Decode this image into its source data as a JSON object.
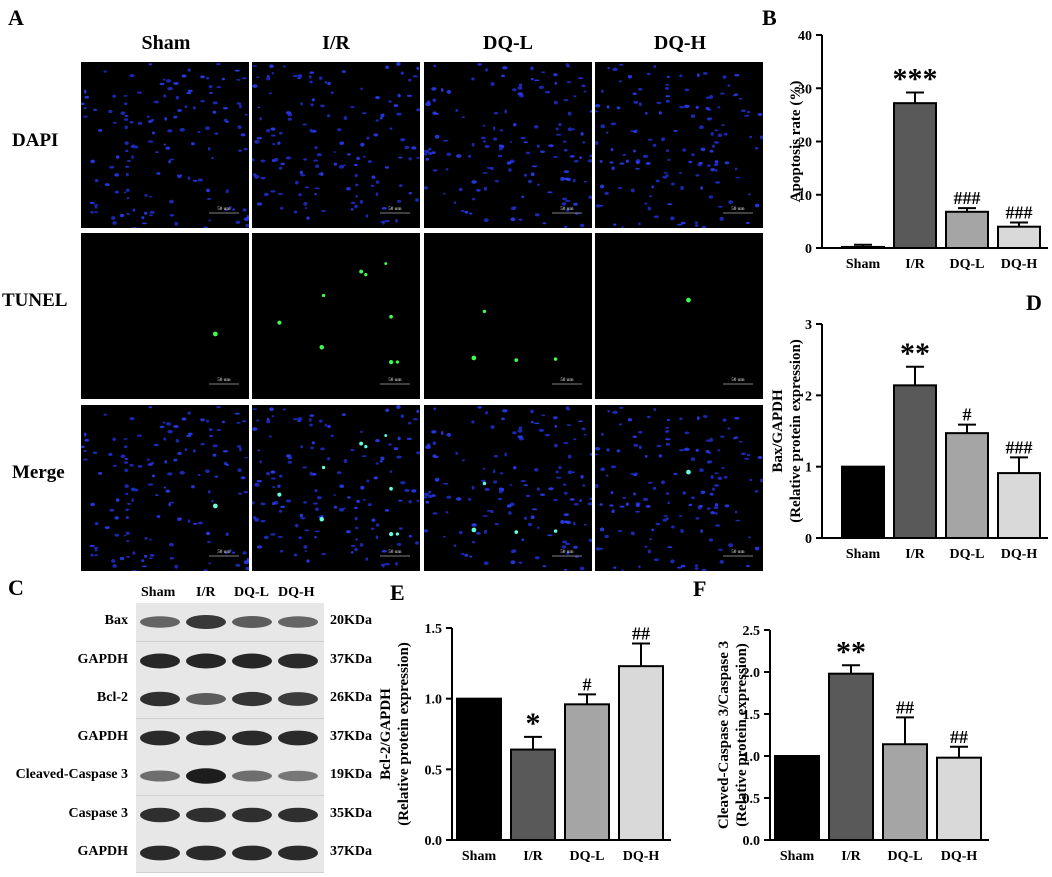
{
  "panels": {
    "A": "A",
    "B": "B",
    "C": "C",
    "D": "D",
    "E": "E",
    "F": "F"
  },
  "microscopy": {
    "columns": [
      "Sham",
      "I/R",
      "DQ-L",
      "DQ-H"
    ],
    "rows": [
      "DAPI",
      "TUNEL",
      "Merge"
    ],
    "scale_bar": "50 um"
  },
  "western": {
    "lanes": [
      "Sham",
      "I/R",
      "DQ-L",
      "DQ-H"
    ],
    "rows": [
      {
        "label": "Bax",
        "kda": "20KDa",
        "intensity": [
          0.55,
          0.8,
          0.6,
          0.55
        ]
      },
      {
        "label": "GAPDH",
        "kda": "37KDa",
        "intensity": [
          0.9,
          0.9,
          0.9,
          0.88
        ]
      },
      {
        "label": "Bcl-2",
        "kda": "26KDa",
        "intensity": [
          0.85,
          0.6,
          0.82,
          0.78
        ]
      },
      {
        "label": "GAPDH",
        "kda": "37KDa",
        "intensity": [
          0.88,
          0.88,
          0.88,
          0.88
        ]
      },
      {
        "label": "Cleaved-Caspase 3",
        "kda": "19KDa",
        "intensity": [
          0.5,
          0.95,
          0.5,
          0.45
        ]
      },
      {
        "label": "Caspase 3",
        "kda": "35KDa",
        "intensity": [
          0.85,
          0.85,
          0.85,
          0.85
        ]
      },
      {
        "label": "GAPDH",
        "kda": "37KDa",
        "intensity": [
          0.88,
          0.88,
          0.88,
          0.88
        ]
      }
    ]
  },
  "chart_data": [
    {
      "id": "B",
      "type": "bar",
      "categories": [
        "Sham",
        "I/R",
        "DQ-L",
        "DQ-H"
      ],
      "values": [
        0.2,
        27.2,
        6.8,
        4.0
      ],
      "errors": [
        0.4,
        2.0,
        0.7,
        0.8
      ],
      "annotations": [
        "",
        "***",
        "###",
        "###"
      ],
      "colors": [
        "#000000",
        "#595959",
        "#a5a5a5",
        "#d9d9d9"
      ],
      "ylabel": "Apoptosis rate (%)",
      "ylabel2": "",
      "ylim": [
        0,
        40
      ],
      "yticks": [
        0,
        10,
        20,
        30,
        40
      ]
    },
    {
      "id": "D",
      "type": "bar",
      "categories": [
        "Sham",
        "I/R",
        "DQ-L",
        "DQ-H"
      ],
      "values": [
        1.0,
        2.14,
        1.47,
        0.91
      ],
      "errors": [
        0,
        0.26,
        0.12,
        0.22
      ],
      "annotations": [
        "",
        "**",
        "#",
        "###"
      ],
      "colors": [
        "#000000",
        "#595959",
        "#a5a5a5",
        "#d9d9d9"
      ],
      "ylabel": "Bax/GAPDH",
      "ylabel2": "(Relative protein expression)",
      "ylim": [
        0,
        3
      ],
      "yticks": [
        0,
        1,
        2,
        3
      ]
    },
    {
      "id": "E",
      "type": "bar",
      "categories": [
        "Sham",
        "I/R",
        "DQ-L",
        "DQ-H"
      ],
      "values": [
        1.0,
        0.64,
        0.96,
        1.23
      ],
      "errors": [
        0,
        0.09,
        0.07,
        0.16
      ],
      "annotations": [
        "",
        "*",
        "#",
        "##"
      ],
      "colors": [
        "#000000",
        "#595959",
        "#a5a5a5",
        "#d9d9d9"
      ],
      "ylabel": "Bcl-2/GAPDH",
      "ylabel2": "(Relative protein expression)",
      "ylim": [
        0,
        1.5
      ],
      "yticks": [
        "0.0",
        "0.5",
        "1.0",
        "1.5"
      ]
    },
    {
      "id": "F",
      "type": "bar",
      "categories": [
        "Sham",
        "I/R",
        "DQ-L",
        "DQ-H"
      ],
      "values": [
        1.0,
        1.98,
        1.14,
        0.98
      ],
      "errors": [
        0,
        0.1,
        0.32,
        0.13
      ],
      "annotations": [
        "",
        "**",
        "##",
        "##"
      ],
      "colors": [
        "#000000",
        "#595959",
        "#a5a5a5",
        "#d9d9d9"
      ],
      "ylabel": "Cleaved-Caspase 3/Caspase 3",
      "ylabel2": "(Relative protein expression)",
      "ylim": [
        0,
        2.5
      ],
      "yticks": [
        "0.0",
        "0.5",
        "1.0",
        "1.5",
        "2.0",
        "2.5"
      ]
    }
  ]
}
